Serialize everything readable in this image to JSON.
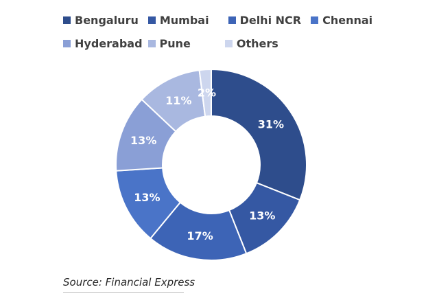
{
  "chart_data": {
    "type": "pie",
    "variant": "donut",
    "categories": [
      "Bengaluru",
      "Mumbai",
      "Delhi NCR",
      "Chennai",
      "Hyderabad",
      "Pune",
      "Others"
    ],
    "values": [
      31,
      13,
      17,
      13,
      13,
      11,
      2
    ],
    "labels": [
      "31%",
      "13%",
      "17%",
      "13%",
      "13%",
      "11%",
      "2%"
    ],
    "colors": [
      "#2e4d8c",
      "#3558a3",
      "#3d64b6",
      "#4a74c8",
      "#8a9fd6",
      "#a9b8e0",
      "#cdd6ee"
    ],
    "legend_position": "top",
    "label_color": "#ffffff",
    "title": ""
  },
  "legend": {
    "rows": [
      [
        0,
        1,
        2,
        3
      ],
      [
        4,
        5,
        6
      ]
    ]
  },
  "source": "Source: Financial Express"
}
